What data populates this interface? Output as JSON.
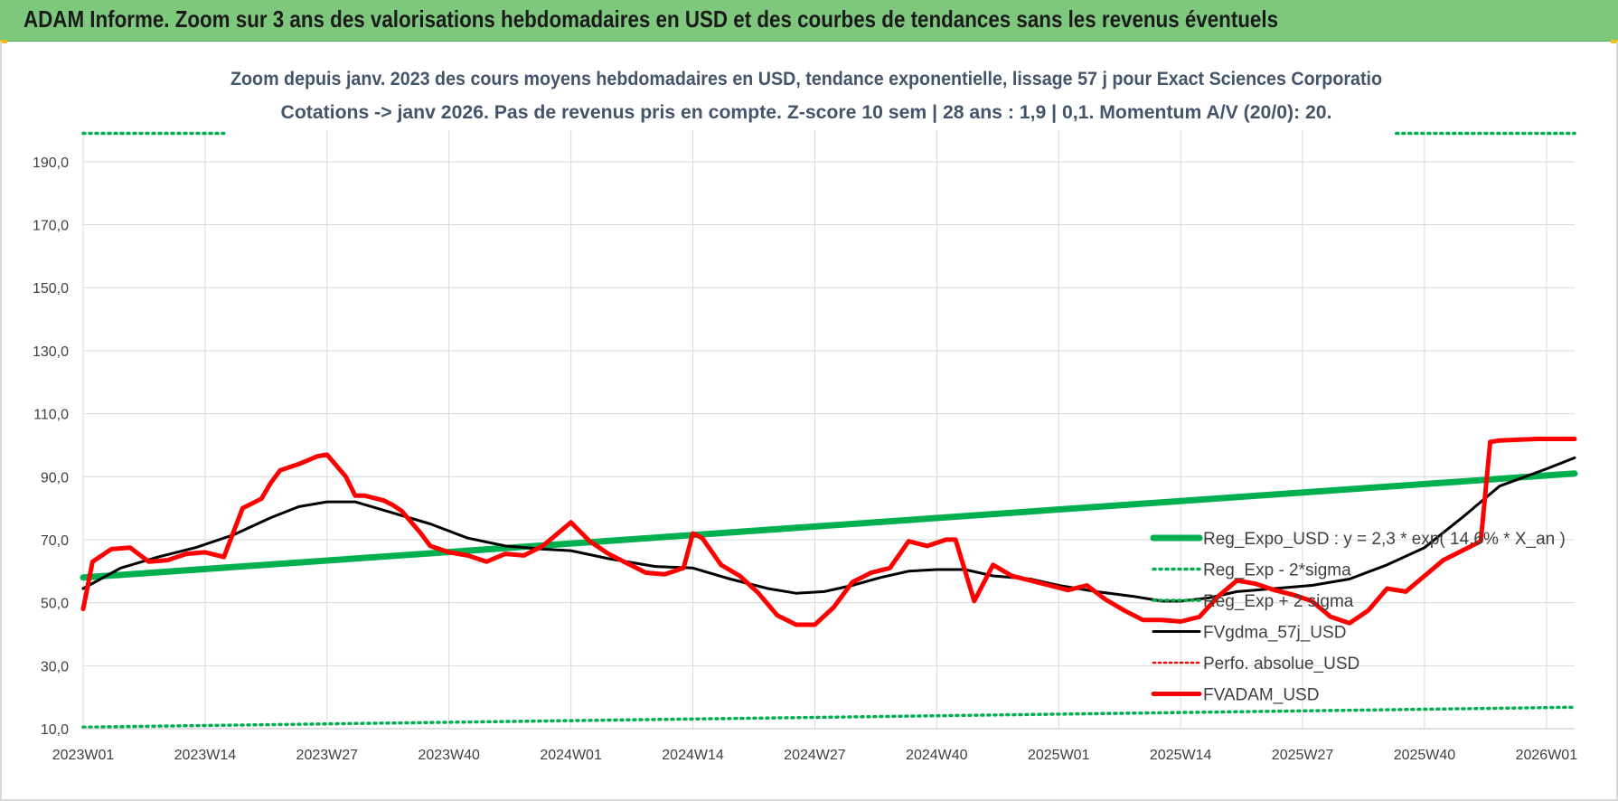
{
  "banner": {
    "title": "ADAM Informe. Zoom sur 3 ans des valorisations hebdomadaires en USD et des courbes de tendances sans les revenus éventuels"
  },
  "colors": {
    "banner_bg": "#7ec87e",
    "reg_expo": "#00b050",
    "fvgdma": "#000000",
    "perfo": "#ff0000",
    "fvadam": "#ff0000",
    "grid": "#d9d9d9"
  },
  "chart_data": {
    "type": "line",
    "title": "Zoom depuis janv. 2023 des cours moyens hebdomadaires en USD, tendance exponentielle, lissage 57 j pour Exact Sciences Corporatio",
    "subtitle": "Cotations -> janv 2026. Pas de revenus pris en compte. Z-score 10 sem  | 28 ans : 1,9 | 0,1. Momentum A/V (20/0): 20.",
    "xlabel": "",
    "ylabel": "",
    "ylim": [
      10,
      200
    ],
    "yticks": [
      "10,0",
      "30,0",
      "50,0",
      "70,0",
      "90,0",
      "110,0",
      "130,0",
      "150,0",
      "170,0",
      "190,0"
    ],
    "xticks": [
      "2023W01",
      "2023W14",
      "2023W27",
      "2023W40",
      "2024W01",
      "2024W14",
      "2024W27",
      "2024W40",
      "2025W01",
      "2025W14",
      "2025W27",
      "2025W40",
      "2026W01"
    ],
    "x_range": [
      "2023W01",
      "2026W04"
    ],
    "grid": true,
    "legend_position": "bottom-right",
    "series": [
      {
        "name": "Reg_Expo_USD : y = 2,3 * exp( 14,6% *  X_an )",
        "style": "line-thick",
        "x": [
          "2023W01",
          "2026W04"
        ],
        "y": [
          58,
          91
        ]
      },
      {
        "name": "Reg_Exp - 2*sigma",
        "style": "dotted",
        "x": [
          "2023W01",
          "2026W04"
        ],
        "y": [
          10.5,
          16.8
        ]
      },
      {
        "name": "Reg_Exp + 2 sigma",
        "style": "dotted",
        "x": [
          "2023W01",
          "2023W16",
          "2025W37",
          "2026W04"
        ],
        "y": [
          199,
          199,
          199,
          199
        ]
      },
      {
        "name": "FVgdma_57j_USD",
        "style": "line",
        "x": [
          "2023W01",
          "2023W05",
          "2023W09",
          "2023W13",
          "2023W17",
          "2023W21",
          "2023W24",
          "2023W27",
          "2023W30",
          "2023W34",
          "2023W38",
          "2023W42",
          "2023W46",
          "2023W50",
          "2024W01",
          "2024W05",
          "2024W10",
          "2024W14",
          "2024W18",
          "2024W22",
          "2024W25",
          "2024W28",
          "2024W31",
          "2024W34",
          "2024W37",
          "2024W40",
          "2024W43",
          "2024W46",
          "2024W50",
          "2025W01",
          "2025W05",
          "2025W09",
          "2025W12",
          "2025W14",
          "2025W17",
          "2025W20",
          "2025W24",
          "2025W28",
          "2025W32",
          "2025W36",
          "2025W40",
          "2025W44",
          "2025W48",
          "2026W01",
          "2026W04"
        ],
        "y": [
          54.5,
          61,
          64.5,
          67.5,
          71.5,
          77,
          80.5,
          82,
          82,
          78.5,
          75,
          70.5,
          68,
          67,
          66.5,
          64,
          61.5,
          61,
          57.5,
          54.5,
          53,
          53.5,
          55.5,
          58,
          60,
          60.5,
          60.5,
          58.5,
          57.5,
          55.5,
          53.5,
          52,
          50.5,
          50.5,
          51.5,
          53.5,
          54.5,
          55.5,
          57.5,
          62,
          67.5,
          77,
          87,
          92.5,
          96
        ]
      },
      {
        "name": "Perfo. absolue_USD",
        "style": "dotted",
        "x": [],
        "y": []
      },
      {
        "name": "FVADAM_USD",
        "style": "line-thick",
        "x": [
          "2023W01",
          "2023W02",
          "2023W04",
          "2023W06",
          "2023W08",
          "2023W10",
          "2023W12",
          "2023W14",
          "2023W16",
          "2023W18",
          "2023W20",
          "2023W21",
          "2023W22",
          "2023W24",
          "2023W26",
          "2023W27",
          "2023W29",
          "2023W30",
          "2023W31",
          "2023W33",
          "2023W34",
          "2023W35",
          "2023W37",
          "2023W38",
          "2023W40",
          "2023W42",
          "2023W44",
          "2023W46",
          "2023W48",
          "2023W50",
          "2024W01",
          "2024W03",
          "2024W05",
          "2024W07",
          "2024W09",
          "2024W11",
          "2024W13",
          "2024W14",
          "2024W15",
          "2024W17",
          "2024W19",
          "2024W21",
          "2024W23",
          "2024W25",
          "2024W27",
          "2024W29",
          "2024W31",
          "2024W33",
          "2024W35",
          "2024W37",
          "2024W39",
          "2024W41",
          "2024W42",
          "2024W44",
          "2024W46",
          "2024W48",
          "2024W50",
          "2024W52",
          "2025W02",
          "2025W04",
          "2025W06",
          "2025W08",
          "2025W10",
          "2025W12",
          "2025W14",
          "2025W16",
          "2025W18",
          "2025W20",
          "2025W22",
          "2025W24",
          "2025W26",
          "2025W28",
          "2025W30",
          "2025W32",
          "2025W34",
          "2025W36",
          "2025W38",
          "2025W40",
          "2025W42",
          "2025W44",
          "2025W46",
          "2025W47",
          "2025W48",
          "2025W52",
          "2026W02",
          "2026W04"
        ],
        "y": [
          48,
          63,
          67,
          67.5,
          63,
          63.5,
          65.5,
          66,
          64.5,
          80,
          83,
          88,
          92,
          94,
          96.5,
          97,
          90,
          84,
          84,
          82.5,
          81,
          79,
          72,
          68,
          66,
          65,
          63,
          65.5,
          65,
          68,
          75.5,
          69.5,
          65.5,
          62.5,
          59.5,
          59,
          61,
          72,
          70.5,
          62,
          58.5,
          53,
          46,
          43,
          43,
          48.5,
          56.5,
          59.5,
          61,
          69.5,
          68,
          70,
          70,
          50.5,
          62,
          58.5,
          57,
          55.5,
          54,
          55.5,
          51,
          47.5,
          44.5,
          44.5,
          44,
          45.5,
          52,
          57,
          56,
          54,
          52.5,
          50.5,
          45.5,
          43.5,
          47.5,
          54.5,
          53.5,
          58.5,
          63.5,
          66.5,
          69.5,
          101,
          101.5,
          102,
          102,
          102
        ]
      }
    ]
  }
}
